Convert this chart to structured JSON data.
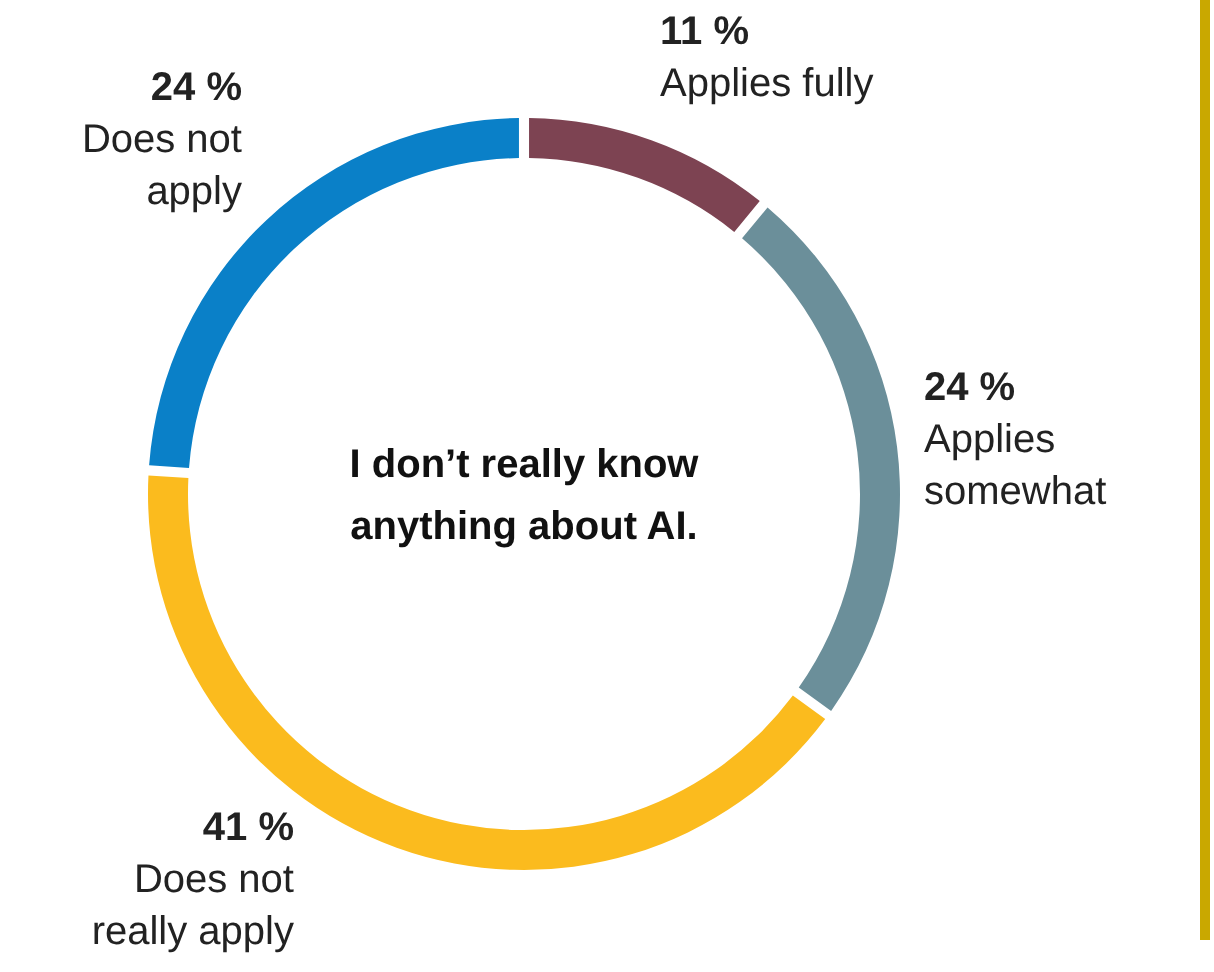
{
  "chart_data": {
    "type": "donut",
    "title": "I don’t really know anything about AI.",
    "categories": [
      "Applies fully",
      "Applies somewhat",
      "Does not really apply",
      "Does not apply"
    ],
    "values": [
      11,
      24,
      41,
      24
    ],
    "colors": [
      "#7d4352",
      "#6b8f9a",
      "#fbbb1e",
      "#0a80c8"
    ],
    "value_labels": [
      "11 %",
      "24 %",
      "41 %",
      "24 %"
    ]
  }
}
